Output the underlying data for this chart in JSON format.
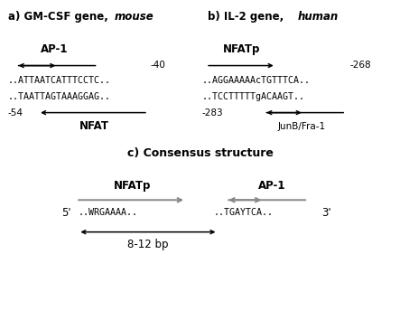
{
  "title_a": "a) GM-CSF gene, ",
  "title_a_italic": "mouse",
  "title_b": "b) IL-2 gene, ",
  "title_b_italic": "human",
  "title_c": "c) Consensus structure",
  "a_label_ap1": "AP-1",
  "a_label_nfat": "NFAT",
  "a_seq1": "..ATTAATCATTTCCTC..",
  "a_seq2": "..TAATTAGTAAAGGAG..",
  "a_num_top": "-40",
  "a_num_bot": "-54",
  "b_label_nfatp": "NFATp",
  "b_label_junb": "JunB/Fra-1",
  "b_seq1": "..AGGAAAAAcTGTTTCA..",
  "b_seq2": "..TCCTTTTTgACAAGT..",
  "b_num_top": "-268",
  "b_num_bot": "-283",
  "c_label_nfatp": "NFATp",
  "c_label_ap1": "AP-1",
  "c_5prime": "5'",
  "c_3prime": "3'",
  "c_seq_left": "..WRGAAAA..",
  "c_seq_right": "..TGAYTCA..",
  "c_dist": "8-12 bp",
  "bg_color": "#ffffff",
  "text_color": "#000000",
  "gray_arrow": "#888888"
}
